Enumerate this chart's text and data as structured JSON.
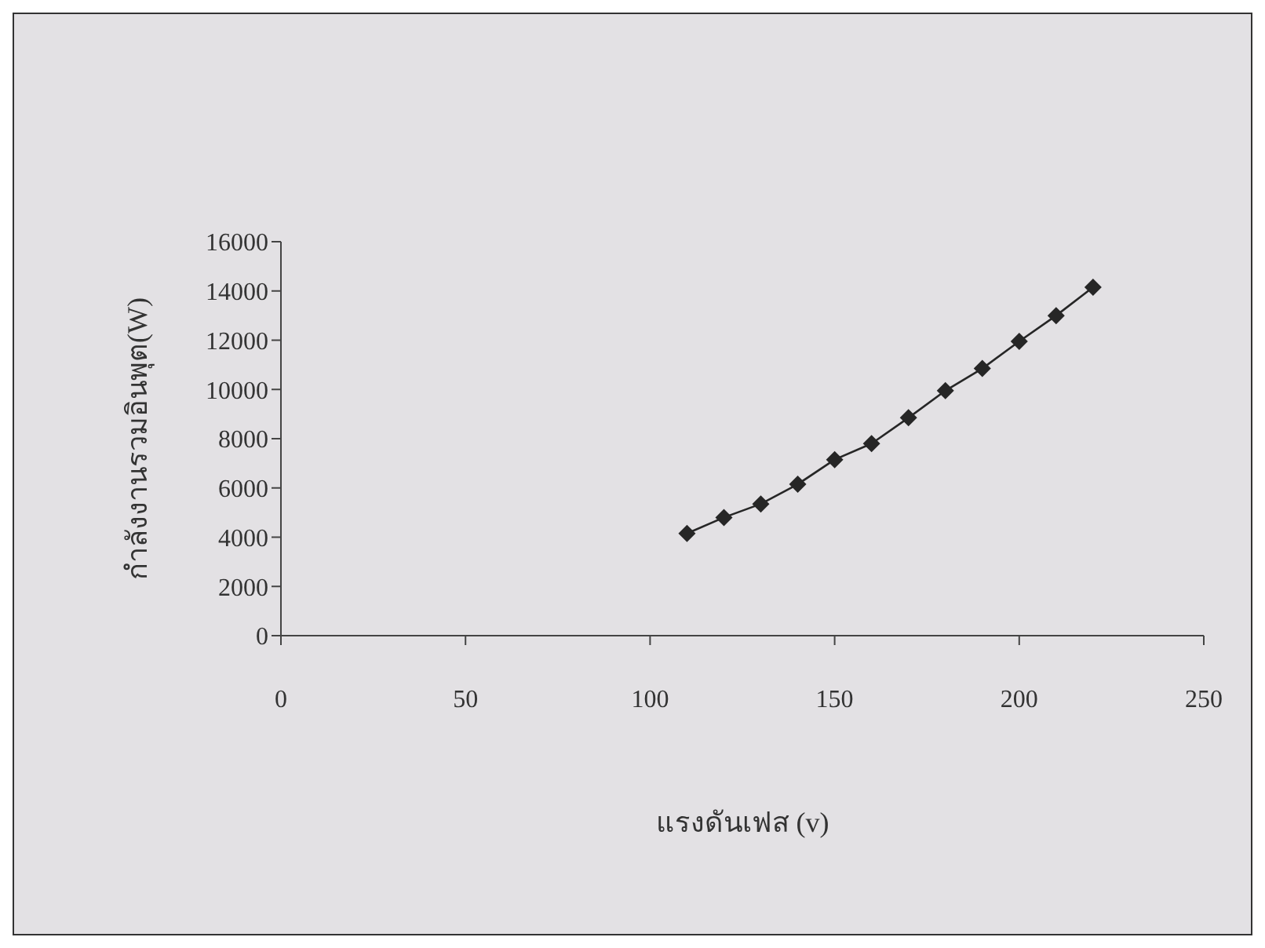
{
  "chart_data": {
    "type": "line",
    "xlabel": "แรงดันเฟส (v)",
    "ylabel": "กำลังงานรวมอินพุต(W)",
    "x": [
      110,
      120,
      130,
      140,
      150,
      160,
      170,
      180,
      190,
      200,
      210,
      220
    ],
    "series": [
      {
        "color": "#262626",
        "values": [
          4150,
          4800,
          5350,
          6150,
          7150,
          7800,
          8850,
          9950,
          10850,
          11950,
          13000,
          14150
        ]
      }
    ],
    "xlim": [
      0,
      250
    ],
    "xticks": [
      0,
      50,
      100,
      150,
      200,
      250
    ],
    "ylim": [
      0,
      16000
    ],
    "yticks": [
      0,
      2000,
      4000,
      6000,
      8000,
      10000,
      12000,
      14000,
      16000
    ],
    "grid": false,
    "marker": "diamond",
    "line_style": "solid"
  }
}
